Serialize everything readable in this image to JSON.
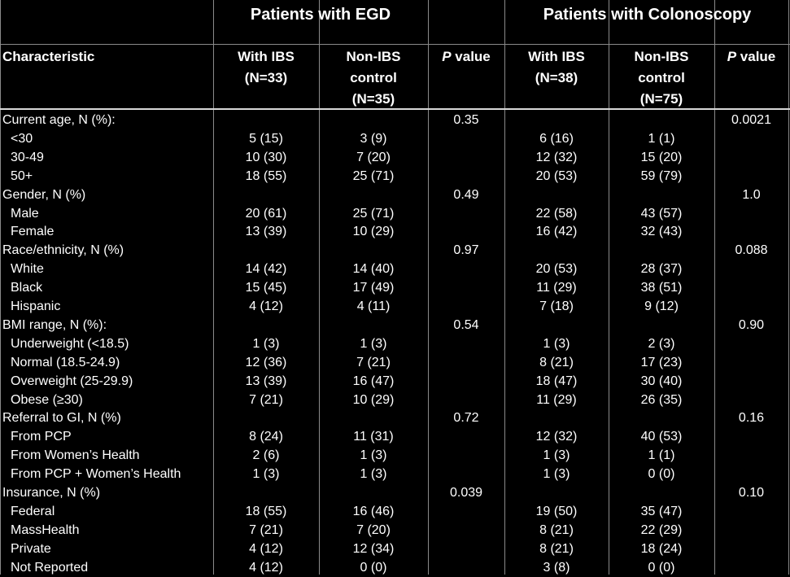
{
  "groups": {
    "egd": "Patients with EGD",
    "colonoscopy": "Patients with Colonoscopy"
  },
  "headers": {
    "characteristic": "Characteristic",
    "egd_ibs_l1": "With IBS",
    "egd_ibs_l2": "(N=33)",
    "egd_ctrl_l1": "Non-IBS",
    "egd_ctrl_l2": "control",
    "egd_ctrl_l3": "(N=35)",
    "p_italic": "P",
    "p_rest": " value",
    "col_ibs_l1": "With IBS",
    "col_ibs_l2": "(N=38)",
    "col_ctrl_l1": "Non-IBS",
    "col_ctrl_l2": "control",
    "col_ctrl_l3": "(N=75)"
  },
  "rows": [
    {
      "label": "Current age, N (%):",
      "indent": false,
      "egd_ibs": "",
      "egd_ctrl": "",
      "egd_p": "0.35",
      "col_ibs": "",
      "col_ctrl": "",
      "col_p": "0.0021"
    },
    {
      "label": "<30",
      "indent": true,
      "egd_ibs": "5 (15)",
      "egd_ctrl": "3 (9)",
      "egd_p": "",
      "col_ibs": "6 (16)",
      "col_ctrl": "1 (1)",
      "col_p": ""
    },
    {
      "label": "30-49",
      "indent": true,
      "egd_ibs": "10 (30)",
      "egd_ctrl": "7 (20)",
      "egd_p": "",
      "col_ibs": "12 (32)",
      "col_ctrl": "15 (20)",
      "col_p": ""
    },
    {
      "label": "50+",
      "indent": true,
      "egd_ibs": "18 (55)",
      "egd_ctrl": "25 (71)",
      "egd_p": "",
      "col_ibs": "20 (53)",
      "col_ctrl": "59 (79)",
      "col_p": ""
    },
    {
      "label": "Gender, N (%)",
      "indent": false,
      "egd_ibs": "",
      "egd_ctrl": "",
      "egd_p": "0.49",
      "col_ibs": "",
      "col_ctrl": "",
      "col_p": "1.0"
    },
    {
      "label": "Male",
      "indent": true,
      "egd_ibs": "20 (61)",
      "egd_ctrl": "25 (71)",
      "egd_p": "",
      "col_ibs": "22 (58)",
      "col_ctrl": "43 (57)",
      "col_p": ""
    },
    {
      "label": "Female",
      "indent": true,
      "egd_ibs": "13 (39)",
      "egd_ctrl": "10 (29)",
      "egd_p": "",
      "col_ibs": "16 (42)",
      "col_ctrl": "32 (43)",
      "col_p": ""
    },
    {
      "label": "Race/ethnicity, N (%)",
      "indent": false,
      "egd_ibs": "",
      "egd_ctrl": "",
      "egd_p": "0.97",
      "col_ibs": "",
      "col_ctrl": "",
      "col_p": "0.088"
    },
    {
      "label": "White",
      "indent": true,
      "egd_ibs": "14 (42)",
      "egd_ctrl": "14 (40)",
      "egd_p": "",
      "col_ibs": "20 (53)",
      "col_ctrl": "28 (37)",
      "col_p": ""
    },
    {
      "label": "Black",
      "indent": true,
      "egd_ibs": "15 (45)",
      "egd_ctrl": "17 (49)",
      "egd_p": "",
      "col_ibs": "11 (29)",
      "col_ctrl": "38 (51)",
      "col_p": ""
    },
    {
      "label": "Hispanic",
      "indent": true,
      "egd_ibs": "4 (12)",
      "egd_ctrl": "4 (11)",
      "egd_p": "",
      "col_ibs": "7 (18)",
      "col_ctrl": "9 (12)",
      "col_p": ""
    },
    {
      "label": "BMI range, N (%):",
      "indent": false,
      "egd_ibs": "",
      "egd_ctrl": "",
      "egd_p": "0.54",
      "col_ibs": "",
      "col_ctrl": "",
      "col_p": "0.90"
    },
    {
      "label": "Underweight (<18.5)",
      "indent": true,
      "egd_ibs": "1 (3)",
      "egd_ctrl": "1 (3)",
      "egd_p": "",
      "col_ibs": "1 (3)",
      "col_ctrl": "2 (3)",
      "col_p": ""
    },
    {
      "label": "Normal (18.5-24.9)",
      "indent": true,
      "egd_ibs": "12 (36)",
      "egd_ctrl": "7 (21)",
      "egd_p": "",
      "col_ibs": "8 (21)",
      "col_ctrl": "17 (23)",
      "col_p": ""
    },
    {
      "label": "Overweight (25-29.9)",
      "indent": true,
      "egd_ibs": "13 (39)",
      "egd_ctrl": "16 (47)",
      "egd_p": "",
      "col_ibs": "18 (47)",
      "col_ctrl": "30 (40)",
      "col_p": ""
    },
    {
      "label": "Obese (≥30)",
      "indent": true,
      "egd_ibs": "7 (21)",
      "egd_ctrl": "10 (29)",
      "egd_p": "",
      "col_ibs": "11 (29)",
      "col_ctrl": "26 (35)",
      "col_p": ""
    },
    {
      "label": "Referral to GI, N (%)",
      "indent": false,
      "egd_ibs": "",
      "egd_ctrl": "",
      "egd_p": "0.72",
      "col_ibs": "",
      "col_ctrl": "",
      "col_p": "0.16"
    },
    {
      "label": "From PCP",
      "indent": true,
      "egd_ibs": "8 (24)",
      "egd_ctrl": "11 (31)",
      "egd_p": "",
      "col_ibs": "12 (32)",
      "col_ctrl": "40 (53)",
      "col_p": ""
    },
    {
      "label": "From Women’s Health",
      "indent": true,
      "egd_ibs": "2 (6)",
      "egd_ctrl": "1 (3)",
      "egd_p": "",
      "col_ibs": "1 (3)",
      "col_ctrl": "1 (1)",
      "col_p": ""
    },
    {
      "label": "From PCP + Women’s Health",
      "indent": true,
      "egd_ibs": "1 (3)",
      "egd_ctrl": "1 (3)",
      "egd_p": "",
      "col_ibs": "1 (3)",
      "col_ctrl": "0 (0)",
      "col_p": ""
    },
    {
      "label": "Insurance, N (%)",
      "indent": false,
      "egd_ibs": "",
      "egd_ctrl": "",
      "egd_p": "0.039",
      "col_ibs": "",
      "col_ctrl": "",
      "col_p": "0.10"
    },
    {
      "label": "Federal",
      "indent": true,
      "egd_ibs": "18 (55)",
      "egd_ctrl": "16 (46)",
      "egd_p": "",
      "col_ibs": "19 (50)",
      "col_ctrl": "35 (47)",
      "col_p": ""
    },
    {
      "label": "MassHealth",
      "indent": true,
      "egd_ibs": "7 (21)",
      "egd_ctrl": "7 (20)",
      "egd_p": "",
      "col_ibs": "8 (21)",
      "col_ctrl": "22 (29)",
      "col_p": ""
    },
    {
      "label": "Private",
      "indent": true,
      "egd_ibs": "4 (12)",
      "egd_ctrl": "12 (34)",
      "egd_p": "",
      "col_ibs": "8 (21)",
      "col_ctrl": "18 (24)",
      "col_p": ""
    },
    {
      "label": "Not Reported",
      "indent": true,
      "egd_ibs": "4 (12)",
      "egd_ctrl": "0 (0)",
      "egd_p": "",
      "col_ibs": "3 (8)",
      "col_ctrl": "0 (0)",
      "col_p": ""
    }
  ]
}
